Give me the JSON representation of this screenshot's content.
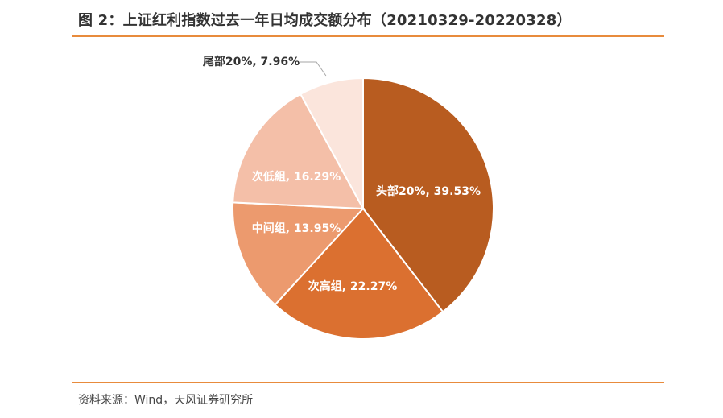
{
  "header": {
    "title": "图 2：上证红利指数过去一年日均成交额分布（20210329-20220328）"
  },
  "footer": {
    "source": "资料来源：Wind，天风证券研究所"
  },
  "chart_data": {
    "type": "pie",
    "title": "",
    "slices": [
      {
        "label": "头部20%, 39.53%",
        "category": "头部20%",
        "value": 39.53,
        "color": "#b85c20"
      },
      {
        "label": "次高组, 22.27%",
        "category": "次高组",
        "value": 22.27,
        "color": "#db7030"
      },
      {
        "label": "中间组, 13.95%",
        "category": "中间组",
        "value": 13.95,
        "color": "#ec9a6e"
      },
      {
        "label": "次低組, 16.29%",
        "category": "次低組",
        "value": 16.29,
        "color": "#f4bfa8"
      },
      {
        "label": "尾部20%, 7.96%",
        "category": "尾部20%",
        "value": 7.96,
        "color": "#fbe5dc"
      }
    ]
  }
}
